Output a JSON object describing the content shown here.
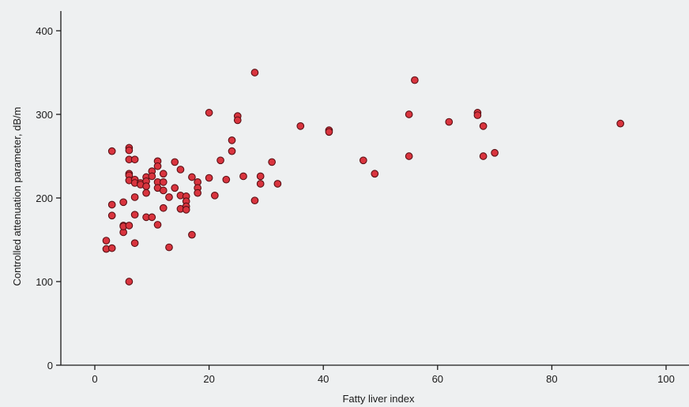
{
  "chart_data": {
    "type": "scatter",
    "title": "",
    "xlabel": "Fatty liver index",
    "ylabel": "Controlled attenuation parameter, dB/m",
    "xlim": [
      -6,
      104
    ],
    "ylim": [
      0,
      420
    ],
    "xticks": [
      0,
      20,
      40,
      60,
      80,
      100
    ],
    "yticks": [
      0,
      100,
      200,
      300,
      400
    ],
    "grid": false,
    "legend": "none",
    "marker_color": "#d9343e",
    "marker_edge": "#5a1015",
    "points": [
      [
        2,
        149
      ],
      [
        2,
        139
      ],
      [
        3,
        140
      ],
      [
        3,
        256
      ],
      [
        3,
        192
      ],
      [
        3,
        179
      ],
      [
        5,
        195
      ],
      [
        5,
        167
      ],
      [
        5,
        159
      ],
      [
        5,
        166
      ],
      [
        6,
        260
      ],
      [
        6,
        257
      ],
      [
        6,
        246
      ],
      [
        6,
        229
      ],
      [
        6,
        227
      ],
      [
        6,
        221
      ],
      [
        6,
        167
      ],
      [
        6,
        100
      ],
      [
        7,
        246
      ],
      [
        7,
        222
      ],
      [
        7,
        218
      ],
      [
        7,
        201
      ],
      [
        7,
        180
      ],
      [
        7,
        146
      ],
      [
        8,
        218
      ],
      [
        8,
        216
      ],
      [
        9,
        225
      ],
      [
        9,
        220
      ],
      [
        9,
        214
      ],
      [
        9,
        206
      ],
      [
        9,
        177
      ],
      [
        10,
        232
      ],
      [
        10,
        226
      ],
      [
        10,
        177
      ],
      [
        11,
        244
      ],
      [
        11,
        238
      ],
      [
        11,
        219
      ],
      [
        11,
        212
      ],
      [
        11,
        168
      ],
      [
        12,
        229
      ],
      [
        12,
        219
      ],
      [
        12,
        209
      ],
      [
        12,
        188
      ],
      [
        13,
        201
      ],
      [
        13,
        141
      ],
      [
        14,
        243
      ],
      [
        14,
        212
      ],
      [
        15,
        234
      ],
      [
        15,
        203
      ],
      [
        15,
        187
      ],
      [
        16,
        202
      ],
      [
        16,
        196
      ],
      [
        16,
        190
      ],
      [
        16,
        186
      ],
      [
        17,
        225
      ],
      [
        17,
        156
      ],
      [
        18,
        219
      ],
      [
        18,
        212
      ],
      [
        18,
        206
      ],
      [
        20,
        302
      ],
      [
        20,
        224
      ],
      [
        21,
        203
      ],
      [
        22,
        245
      ],
      [
        23,
        222
      ],
      [
        24,
        269
      ],
      [
        24,
        256
      ],
      [
        25,
        298
      ],
      [
        25,
        293
      ],
      [
        26,
        226
      ],
      [
        28,
        350
      ],
      [
        28,
        197
      ],
      [
        29,
        226
      ],
      [
        29,
        217
      ],
      [
        31,
        243
      ],
      [
        32,
        217
      ],
      [
        36,
        286
      ],
      [
        41,
        281
      ],
      [
        41,
        279
      ],
      [
        47,
        245
      ],
      [
        49,
        229
      ],
      [
        55,
        300
      ],
      [
        55,
        250
      ],
      [
        56,
        341
      ],
      [
        62,
        291
      ],
      [
        67,
        302
      ],
      [
        67,
        299
      ],
      [
        68,
        286
      ],
      [
        68,
        250
      ],
      [
        70,
        254
      ],
      [
        92,
        289
      ]
    ]
  }
}
